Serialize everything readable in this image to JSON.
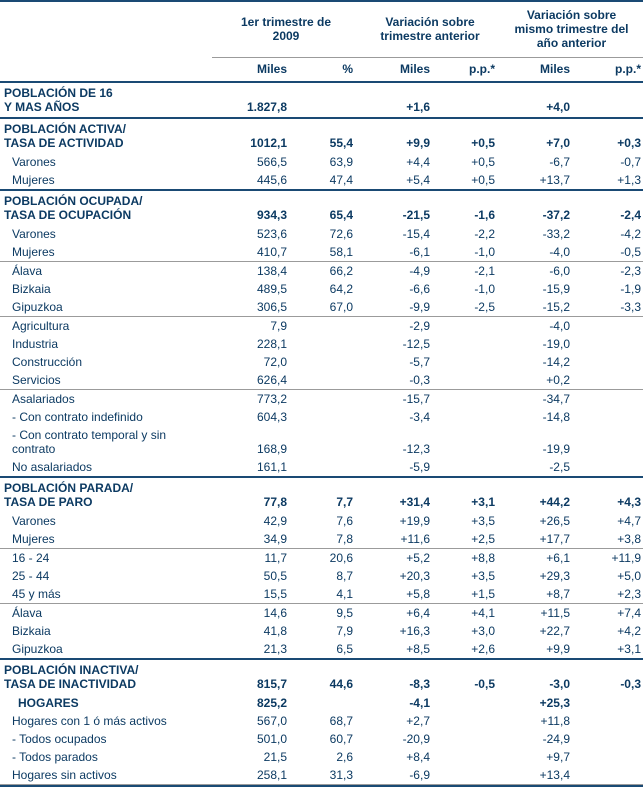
{
  "colors": {
    "navy_text": "#0c3a62",
    "navy_line": "#1a4a74",
    "gray_line": "#9b9b9b",
    "background": "#ffffff"
  },
  "table": {
    "col_groups": [
      {
        "label": "1er trimestre de 2009"
      },
      {
        "label": "Variación sobre trimestre anterior"
      },
      {
        "label": "Variación sobre mismo trimestre del año anterior"
      }
    ],
    "sub_headers": [
      "Miles",
      "%",
      "Miles",
      "p.p.*",
      "Miles",
      "p.p.*"
    ],
    "rows": [
      {
        "label": "POBLACIÓN DE 16",
        "label2": "Y MAS AÑOS",
        "kind": "section",
        "sep": null,
        "values": [
          "1.827,8",
          "",
          "+1,6",
          "",
          "+4,0",
          ""
        ]
      },
      {
        "label": "POBLACIÓN ACTIVA/",
        "label2": "TASA DE ACTIVIDAD",
        "kind": "section",
        "sep": "navy",
        "values": [
          "1012,1",
          "55,4",
          "+9,9",
          "+0,5",
          "+7,0",
          "+0,3"
        ]
      },
      {
        "label": "Varones",
        "kind": "sub",
        "sep": null,
        "values": [
          "566,5",
          "63,9",
          "+4,4",
          "+0,5",
          "-6,7",
          "-0,7"
        ]
      },
      {
        "label": "Mujeres",
        "kind": "sub",
        "sep": null,
        "values": [
          "445,6",
          "47,4",
          "+5,4",
          "+0,5",
          "+13,7",
          "+1,3"
        ]
      },
      {
        "label": "POBLACIÓN OCUPADA/",
        "label2": "TASA DE OCUPACIÓN",
        "kind": "section",
        "sep": "navy",
        "values": [
          "934,3",
          "65,4",
          "-21,5",
          "-1,6",
          "-37,2",
          "-2,4"
        ]
      },
      {
        "label": "Varones",
        "kind": "sub",
        "sep": null,
        "values": [
          "523,6",
          "72,6",
          "-15,4",
          "-2,2",
          "-33,2",
          "-4,2"
        ]
      },
      {
        "label": "Mujeres",
        "kind": "sub",
        "sep": null,
        "values": [
          "410,7",
          "58,1",
          "-6,1",
          "-1,0",
          "-4,0",
          "-0,5"
        ]
      },
      {
        "label": "Álava",
        "kind": "sub",
        "sep": "gray",
        "values": [
          "138,4",
          "66,2",
          "-4,9",
          "-2,1",
          "-6,0",
          "-2,3"
        ]
      },
      {
        "label": "Bizkaia",
        "kind": "sub",
        "sep": null,
        "values": [
          "489,5",
          "64,2",
          "-6,6",
          "-1,0",
          "-15,9",
          "-1,9"
        ]
      },
      {
        "label": "Gipuzkoa",
        "kind": "sub",
        "sep": null,
        "values": [
          "306,5",
          "67,0",
          "-9,9",
          "-2,5",
          "-15,2",
          "-3,3"
        ]
      },
      {
        "label": "Agricultura",
        "kind": "sub",
        "sep": "gray",
        "values": [
          "7,9",
          "",
          "-2,9",
          "",
          "-4,0",
          ""
        ]
      },
      {
        "label": "Industria",
        "kind": "sub",
        "sep": null,
        "values": [
          "228,1",
          "",
          "-12,5",
          "",
          "-19,0",
          ""
        ]
      },
      {
        "label": "Construcción",
        "kind": "sub",
        "sep": null,
        "values": [
          "72,0",
          "",
          "-5,7",
          "",
          "-14,2",
          ""
        ]
      },
      {
        "label": "Servicios",
        "kind": "sub",
        "sep": null,
        "values": [
          "626,4",
          "",
          "-0,3",
          "",
          "+0,2",
          ""
        ]
      },
      {
        "label": "Asalariados",
        "kind": "sub",
        "sep": "gray",
        "values": [
          "773,2",
          "",
          "-15,7",
          "",
          "-34,7",
          ""
        ]
      },
      {
        "label": "- Con contrato indefinido",
        "kind": "sub",
        "sep": null,
        "values": [
          "604,3",
          "",
          "-3,4",
          "",
          "-14,8",
          ""
        ]
      },
      {
        "label": "- Con contrato temporal y sin contrato",
        "kind": "sub",
        "sep": null,
        "values": [
          "168,9",
          "",
          "-12,3",
          "",
          "-19,9",
          ""
        ]
      },
      {
        "label": "No asalariados",
        "kind": "sub",
        "sep": null,
        "values": [
          "161,1",
          "",
          "-5,9",
          "",
          "-2,5",
          ""
        ]
      },
      {
        "label": "POBLACIÓN PARADA/",
        "label2": "TASA DE PARO",
        "kind": "section",
        "sep": "navy",
        "values": [
          "77,8",
          "7,7",
          "+31,4",
          "+3,1",
          "+44,2",
          "+4,3"
        ]
      },
      {
        "label": "Varones",
        "kind": "sub",
        "sep": null,
        "values": [
          "42,9",
          "7,6",
          "+19,9",
          "+3,5",
          "+26,5",
          "+4,7"
        ]
      },
      {
        "label": "Mujeres",
        "kind": "sub",
        "sep": null,
        "values": [
          "34,9",
          "7,8",
          "+11,6",
          "+2,5",
          "+17,7",
          "+3,8"
        ]
      },
      {
        "label": "16 - 24",
        "kind": "sub",
        "sep": "gray",
        "values": [
          "11,7",
          "20,6",
          "+5,2",
          "+8,8",
          "+6,1",
          "+11,9"
        ]
      },
      {
        "label": "25 - 44",
        "kind": "sub",
        "sep": null,
        "values": [
          "50,5",
          "8,7",
          "+20,3",
          "+3,5",
          "+29,3",
          "+5,0"
        ]
      },
      {
        "label": "45  y más",
        "kind": "sub",
        "sep": null,
        "values": [
          "15,5",
          "4,1",
          "+5,8",
          "+1,5",
          "+8,7",
          "+2,3"
        ]
      },
      {
        "label": "Álava",
        "kind": "sub",
        "sep": "gray",
        "values": [
          "14,6",
          "9,5",
          "+6,4",
          "+4,1",
          "+11,5",
          "+7,4"
        ]
      },
      {
        "label": "Bizkaia",
        "kind": "sub",
        "sep": null,
        "values": [
          "41,8",
          "7,9",
          "+16,3",
          "+3,0",
          "+22,7",
          "+4,2"
        ]
      },
      {
        "label": "Gipuzkoa",
        "kind": "sub",
        "sep": null,
        "values": [
          "21,3",
          "6,5",
          "+8,5",
          "+2,6",
          "+9,9",
          "+3,1"
        ]
      },
      {
        "label": "POBLACIÓN INACTIVA/",
        "label2": "TASA DE INACTIVIDAD",
        "kind": "section",
        "sep": "navy",
        "values": [
          "815,7",
          "44,6",
          "-8,3",
          "-0,5",
          "-3,0",
          "-0,3"
        ]
      },
      {
        "label": "HOGARES",
        "kind": "boldsub",
        "sep": null,
        "values": [
          "825,2",
          "",
          "-4,1",
          "",
          "+25,3",
          ""
        ]
      },
      {
        "label": "Hogares con 1 ó más activos",
        "kind": "sub",
        "sep": null,
        "values": [
          "567,0",
          "68,7",
          "+2,7",
          "",
          "+11,8",
          ""
        ]
      },
      {
        "label": "- Todos ocupados",
        "kind": "sub",
        "sep": null,
        "values": [
          "501,0",
          "60,7",
          "-20,9",
          "",
          "-24,9",
          ""
        ]
      },
      {
        "label": "- Todos parados",
        "kind": "sub",
        "sep": null,
        "values": [
          "21,5",
          "2,6",
          "+8,4",
          "",
          "+9,7",
          ""
        ]
      },
      {
        "label": "Hogares sin activos",
        "kind": "sub",
        "sep": null,
        "last": true,
        "values": [
          "258,1",
          "31,3",
          "-6,9",
          "",
          "+13,4",
          ""
        ]
      }
    ]
  }
}
